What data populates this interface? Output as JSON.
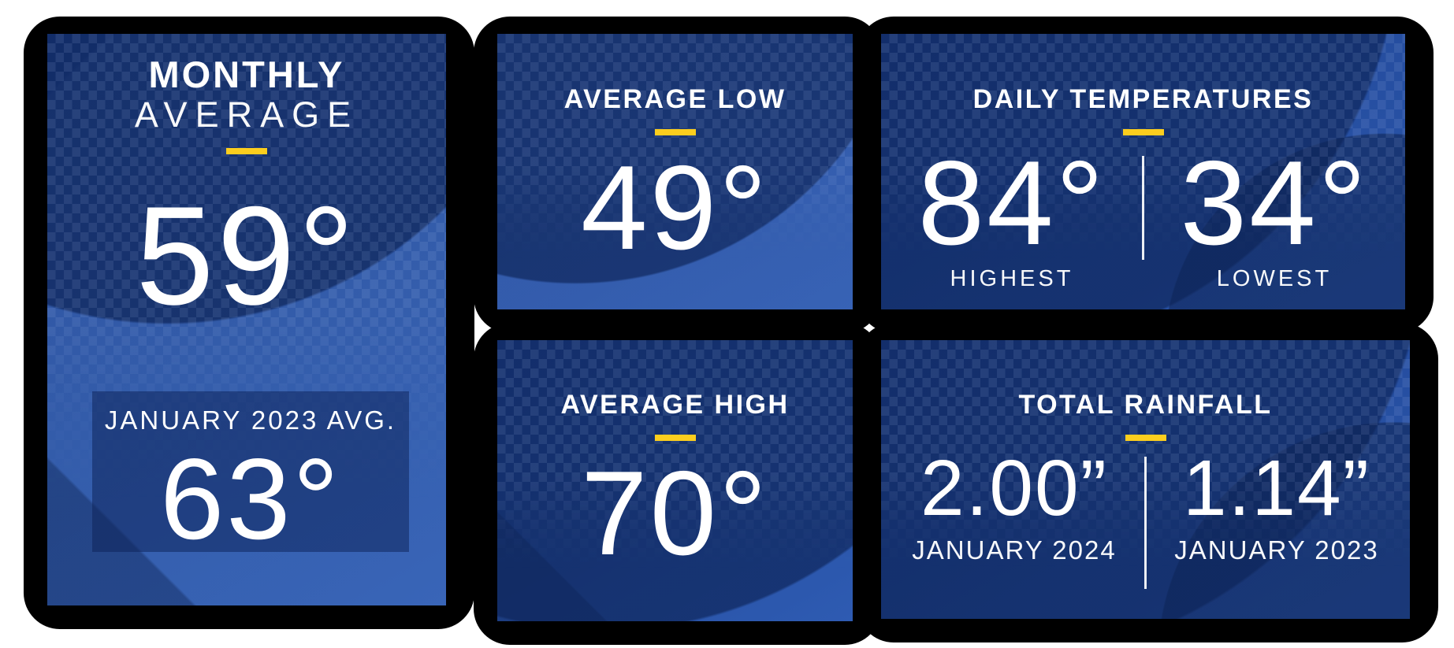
{
  "colors": {
    "accent": "#FCCE1E",
    "card_blue": "#24499D",
    "card_blue_dark": "#17346F",
    "inner_box": "#1C3E88",
    "shadow": "#000000",
    "text": "#FFFFFF"
  },
  "cards": {
    "monthly_average": {
      "title_line1": "MONTHLY",
      "title_line2": "AVERAGE",
      "value": "59°",
      "sub_box": {
        "label": "JANUARY 2023 AVG.",
        "value": "63°"
      }
    },
    "average_low": {
      "title": "AVERAGE LOW",
      "value": "49°"
    },
    "daily_temperatures": {
      "title": "DAILY TEMPERATURES",
      "columns": [
        {
          "value": "84°",
          "label": "HIGHEST"
        },
        {
          "value": "34°",
          "label": "LOWEST"
        }
      ]
    },
    "average_high": {
      "title": "AVERAGE HIGH",
      "value": "70°"
    },
    "total_rainfall": {
      "title": "TOTAL RAINFALL",
      "columns": [
        {
          "value": "2.00”",
          "label": "JANUARY 2024"
        },
        {
          "value": "1.14”",
          "label": "JANUARY 2023"
        }
      ]
    }
  }
}
